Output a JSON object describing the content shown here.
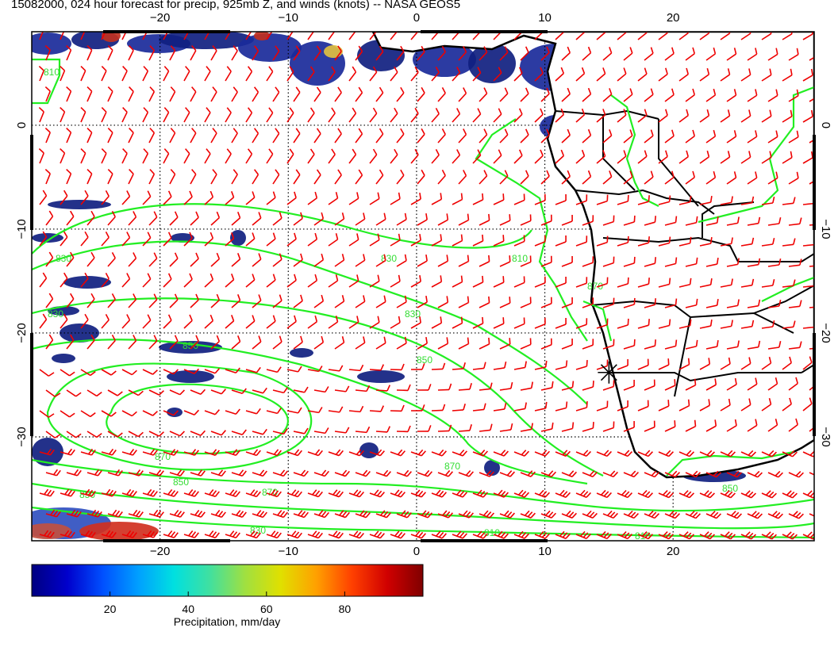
{
  "title": "15082000, 024 hour forecast for precip, 925mb Z, and winds (knots) -- NASA GEOS5",
  "map": {
    "lon_range": [
      -30,
      31
    ],
    "lat_range": [
      -40,
      9
    ],
    "lon_ticks": [
      -20,
      -10,
      0,
      10,
      20
    ],
    "lat_ticks": [
      0,
      -10,
      -20,
      -30
    ],
    "lon_tick_labels": [
      "−20",
      "−10",
      "0",
      "10",
      "20"
    ],
    "lat_tick_labels": [
      "0",
      "−10",
      "−20",
      "−30"
    ],
    "grid_spacing_deg": 10,
    "grid": "dotted",
    "contour_color": "#22ee22",
    "wind_barb_color": "#ee0000",
    "coastline_color": "#000000"
  },
  "contour_labels": [
    "810",
    "830",
    "830",
    "850",
    "830",
    "810",
    "830",
    "850",
    "870",
    "870",
    "850",
    "870",
    "850",
    "830",
    "810",
    "850",
    "870",
    "810"
  ],
  "colorbar": {
    "ticks": [
      20,
      40,
      60,
      80
    ],
    "tick_labels": [
      "20",
      "40",
      "60",
      "80"
    ],
    "range": [
      0,
      100
    ],
    "label": "Precipitation, mm/day",
    "colors": [
      "#000080",
      "#0000cc",
      "#0050ff",
      "#00a0ff",
      "#00e0e0",
      "#40e0a0",
      "#a0e040",
      "#e0e000",
      "#ffa000",
      "#ff4000",
      "#d00000",
      "#800000"
    ]
  },
  "chart_data": {
    "type": "heatmap",
    "title": "15082000, 024 hour forecast for precip, 925mb Z, and winds (knots) -- NASA GEOS5",
    "variables": [
      "precipitation (mm/day)",
      "925mb geopotential height contours",
      "wind barbs (knots)"
    ],
    "x_range_lon": [
      -30,
      31
    ],
    "y_range_lat": [
      -40,
      9
    ],
    "contour_levels": [
      810,
      830,
      850,
      870
    ],
    "colorbar_range": [
      0,
      100
    ],
    "colorbar_label": "Precipitation, mm/day"
  }
}
